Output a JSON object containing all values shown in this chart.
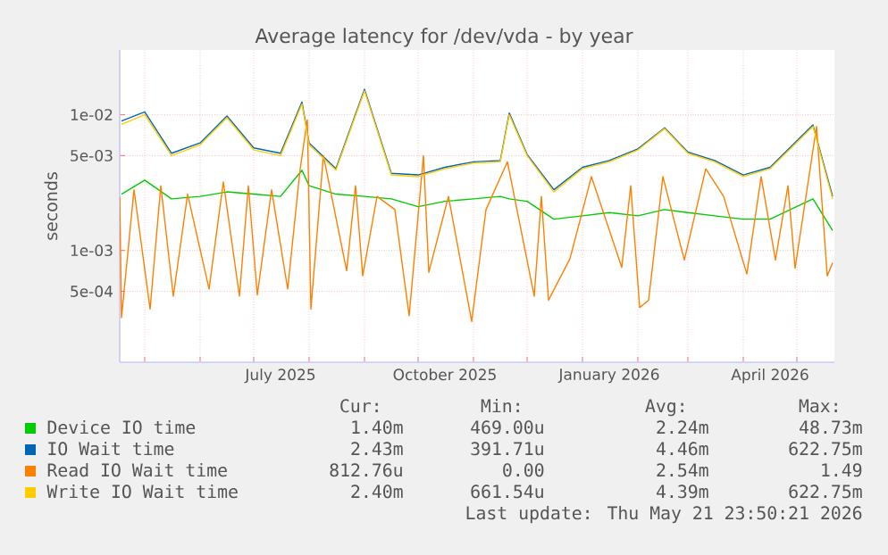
{
  "chart_data": {
    "type": "line",
    "title": "Average latency for /dev/vda - by year",
    "ylabel": "seconds",
    "log": "y",
    "grid": true,
    "legend": "bottom",
    "xlim": [
      "2025-04-17",
      "2026-05-22"
    ],
    "ylim": [
      0.00015,
      0.03
    ],
    "xticks": [
      {
        "value": "2025-05-01",
        "label": null
      },
      {
        "value": "2025-06-01",
        "label": null
      },
      {
        "value": "2025-07-01",
        "label": null
      },
      {
        "value": "2025-08-01",
        "label": null
      },
      {
        "value": "2025-09-01",
        "label": null
      },
      {
        "value": "2025-10-01",
        "label": null
      },
      {
        "value": "2025-11-01",
        "label": null
      },
      {
        "value": "2025-12-01",
        "label": null
      },
      {
        "value": "2026-01-01",
        "label": null
      },
      {
        "value": "2026-02-01",
        "label": null
      },
      {
        "value": "2026-03-01",
        "label": null
      },
      {
        "value": "2026-04-01",
        "label": null
      },
      {
        "value": "2026-05-01",
        "label": null
      },
      {
        "value": "2025-07-16",
        "label": "July 2025"
      },
      {
        "value": "2025-10-16",
        "label": "October 2025"
      },
      {
        "value": "2026-01-16",
        "label": "January 2026"
      },
      {
        "value": "2026-04-16",
        "label": "April 2026"
      }
    ],
    "yticks": [
      {
        "value": 0.0005,
        "label": "5e-04"
      },
      {
        "value": 0.001,
        "label": "1e-03"
      },
      {
        "value": 0.005,
        "label": "5e-03"
      },
      {
        "value": 0.01,
        "label": "1e-02"
      }
    ],
    "series": [
      {
        "name": "Device IO time",
        "color": "#00cc00",
        "x": [
          "2025-04-18",
          "2025-05-01",
          "2025-05-16",
          "2025-06-01",
          "2025-06-16",
          "2025-07-01",
          "2025-07-16",
          "2025-07-28",
          "2025-08-01",
          "2025-08-16",
          "2025-09-01",
          "2025-09-16",
          "2025-10-01",
          "2025-10-16",
          "2025-11-01",
          "2025-11-16",
          "2025-11-21",
          "2025-12-01",
          "2025-12-16",
          "2026-01-01",
          "2026-01-16",
          "2026-02-01",
          "2026-02-16",
          "2026-03-01",
          "2026-03-16",
          "2026-04-01",
          "2026-04-16",
          "2026-05-10",
          "2026-05-21"
        ],
        "values": [
          0.0026,
          0.0033,
          0.0024,
          0.0025,
          0.0027,
          0.0026,
          0.0025,
          0.0039,
          0.003,
          0.0026,
          0.0025,
          0.0024,
          0.0021,
          0.0023,
          0.0024,
          0.0025,
          0.0024,
          0.0023,
          0.0017,
          0.0018,
          0.0019,
          0.0018,
          0.002,
          0.0019,
          0.0018,
          0.0017,
          0.0017,
          0.0024,
          0.0014
        ]
      },
      {
        "name": "IO Wait time",
        "color": "#0066b3",
        "x": [
          "2025-04-18",
          "2025-05-01",
          "2025-05-16",
          "2025-06-01",
          "2025-06-16",
          "2025-07-01",
          "2025-07-16",
          "2025-07-28",
          "2025-08-01",
          "2025-08-16",
          "2025-09-01",
          "2025-09-16",
          "2025-10-01",
          "2025-10-16",
          "2025-11-01",
          "2025-11-16",
          "2025-11-21",
          "2025-12-01",
          "2025-12-16",
          "2026-01-01",
          "2026-01-16",
          "2026-02-01",
          "2026-02-16",
          "2026-03-01",
          "2026-03-16",
          "2026-04-01",
          "2026-04-16",
          "2026-05-10",
          "2026-05-21"
        ],
        "values": [
          0.009,
          0.0105,
          0.0052,
          0.0062,
          0.0098,
          0.0057,
          0.0052,
          0.0124,
          0.0062,
          0.004,
          0.0154,
          0.0037,
          0.0036,
          0.0041,
          0.0045,
          0.0046,
          0.0103,
          0.0051,
          0.0028,
          0.0041,
          0.0046,
          0.0056,
          0.008,
          0.0053,
          0.0046,
          0.0036,
          0.0041,
          0.0084,
          0.0025
        ]
      },
      {
        "name": "Read IO Wait time",
        "color": "#ff8000",
        "x": [
          "2025-04-17",
          "2025-04-18",
          "2025-04-25",
          "2025-05-04",
          "2025-05-10",
          "2025-05-17",
          "2025-05-25",
          "2025-06-06",
          "2025-06-14",
          "2025-06-23",
          "2025-06-28",
          "2025-07-03",
          "2025-07-11",
          "2025-07-20",
          "2025-07-27",
          "2025-07-31",
          "2025-08-02",
          "2025-08-09",
          "2025-08-22",
          "2025-08-27",
          "2025-08-31",
          "2025-09-08",
          "2025-09-18",
          "2025-09-26",
          "2025-10-04",
          "2025-10-07",
          "2025-10-18",
          "2025-10-31",
          "2025-11-08",
          "2025-11-20",
          "2025-12-05",
          "2025-12-09",
          "2025-12-13",
          "2025-12-25",
          "2026-01-06",
          "2026-01-23",
          "2026-01-28",
          "2026-02-02",
          "2026-02-07",
          "2026-02-15",
          "2026-02-27",
          "2026-03-11",
          "2026-03-21",
          "2026-04-03",
          "2026-04-11",
          "2026-04-19",
          "2026-04-26",
          "2026-04-30",
          "2026-05-07",
          "2026-05-12",
          "2026-05-18",
          "2026-05-21"
        ],
        "values": [
          0.0025,
          0.00032,
          0.0028,
          0.00037,
          0.003,
          0.00046,
          0.0026,
          0.00052,
          0.0032,
          0.00046,
          0.003,
          0.00047,
          0.0028,
          0.00052,
          0.004,
          0.0092,
          0.00037,
          0.005,
          0.00071,
          0.003,
          0.00065,
          0.0025,
          0.002,
          0.00033,
          0.005,
          0.00069,
          0.0025,
          0.0003,
          0.002,
          0.0045,
          0.00046,
          0.0025,
          0.00043,
          0.00087,
          0.0035,
          0.00075,
          0.003,
          0.00038,
          0.00043,
          0.0035,
          0.00085,
          0.004,
          0.0025,
          0.00067,
          0.0035,
          0.00085,
          0.003,
          0.00074,
          0.003,
          0.0082,
          0.00065,
          0.00081
        ]
      },
      {
        "name": "Write IO Wait time",
        "color": "#ffcc00",
        "x": [
          "2025-04-18",
          "2025-05-01",
          "2025-05-16",
          "2025-06-01",
          "2025-06-16",
          "2025-07-01",
          "2025-07-16",
          "2025-07-28",
          "2025-08-01",
          "2025-08-16",
          "2025-09-01",
          "2025-09-16",
          "2025-10-01",
          "2025-10-16",
          "2025-11-01",
          "2025-11-16",
          "2025-11-21",
          "2025-12-01",
          "2025-12-16",
          "2026-01-01",
          "2026-01-16",
          "2026-02-01",
          "2026-02-16",
          "2026-03-01",
          "2026-03-16",
          "2026-04-01",
          "2026-04-16",
          "2026-05-10",
          "2026-05-21"
        ],
        "values": [
          0.0085,
          0.01,
          0.005,
          0.006,
          0.0095,
          0.0055,
          0.005,
          0.012,
          0.006,
          0.0039,
          0.015,
          0.0036,
          0.0035,
          0.004,
          0.0044,
          0.0045,
          0.01,
          0.005,
          0.0027,
          0.004,
          0.0045,
          0.0055,
          0.0079,
          0.0052,
          0.0045,
          0.0035,
          0.004,
          0.0082,
          0.0024
        ]
      }
    ],
    "annotations": [
      "Cur:",
      "Min:",
      "Avg:",
      "Max:",
      "1.40m",
      "469.00u",
      "2.24m",
      "48.73m",
      "2.43m",
      "391.71u",
      "4.46m",
      "622.75m",
      "812.76u",
      "0.00",
      "2.54m",
      "1.49",
      "2.40m",
      "661.54u",
      "4.39m",
      "622.75m",
      "Last update: Thu May 21 23:50:21 2026"
    ]
  }
}
